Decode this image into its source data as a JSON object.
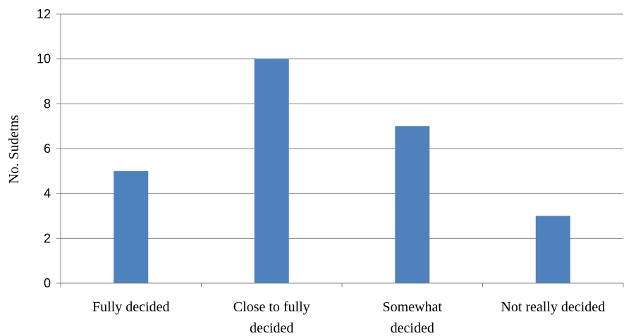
{
  "chart_data": {
    "type": "bar",
    "categories": [
      [
        "Fully decided"
      ],
      [
        "Close to fully",
        "decided"
      ],
      [
        "Somewhat",
        "decided"
      ],
      [
        "Not really decided"
      ]
    ],
    "values": [
      5,
      10,
      7,
      3
    ],
    "title": "",
    "xlabel": "",
    "ylabel": "No. Sudetns",
    "ylim": [
      0,
      12
    ],
    "yticks": [
      0,
      2,
      4,
      6,
      8,
      10,
      12
    ],
    "grid": true,
    "bar_color": "#4f81bd",
    "grid_color": "#868686"
  }
}
